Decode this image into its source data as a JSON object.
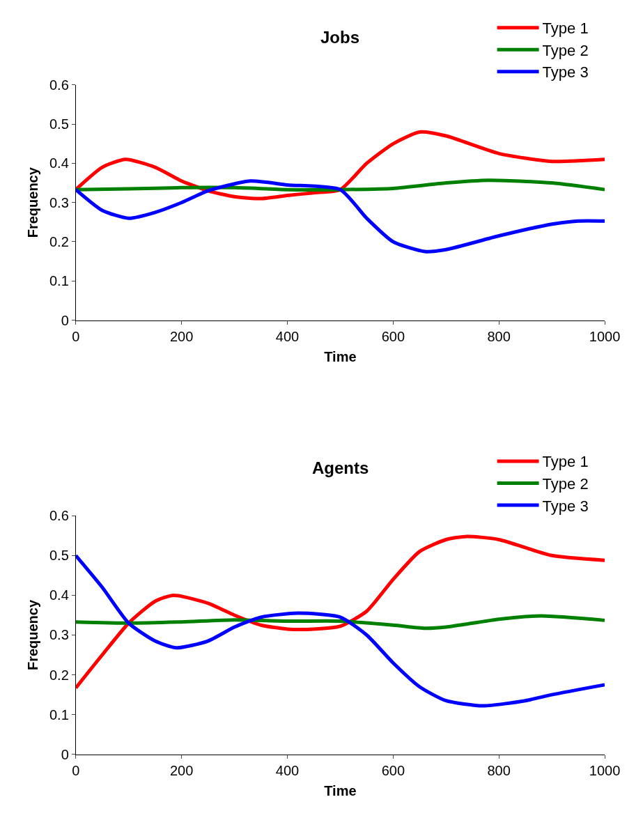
{
  "chart_data": [
    {
      "type": "line",
      "title": "Jobs",
      "xlabel": "Time",
      "ylabel": "Frequency",
      "xlim": [
        0,
        1000
      ],
      "ylim": [
        0,
        0.6
      ],
      "xticks": [
        0,
        200,
        400,
        600,
        800,
        1000
      ],
      "yticks": [
        0,
        0.1,
        0.2,
        0.3,
        0.4,
        0.5,
        0.6
      ],
      "legend": "top right",
      "series": [
        {
          "name": "Type 1",
          "color": "#ff0000",
          "x": [
            0,
            50,
            94,
            150,
            200,
            250,
            300,
            350,
            400,
            450,
            500,
            550,
            600,
            650,
            700,
            800,
            900,
            1000
          ],
          "values": [
            0.333,
            0.39,
            0.41,
            0.39,
            0.355,
            0.33,
            0.315,
            0.31,
            0.318,
            0.325,
            0.333,
            0.4,
            0.45,
            0.48,
            0.47,
            0.425,
            0.405,
            0.41
          ]
        },
        {
          "name": "Type 2",
          "color": "#008000",
          "x": [
            0,
            100,
            200,
            300,
            400,
            500,
            600,
            700,
            780,
            900,
            1000
          ],
          "values": [
            0.333,
            0.335,
            0.338,
            0.338,
            0.333,
            0.333,
            0.336,
            0.35,
            0.357,
            0.35,
            0.333
          ]
        },
        {
          "name": "Type 3",
          "color": "#0000ff",
          "x": [
            0,
            50,
            100,
            150,
            200,
            250,
            330,
            400,
            500,
            550,
            600,
            660,
            700,
            800,
            900,
            950,
            1000
          ],
          "values": [
            0.333,
            0.28,
            0.26,
            0.275,
            0.3,
            0.33,
            0.355,
            0.345,
            0.333,
            0.26,
            0.2,
            0.175,
            0.18,
            0.215,
            0.245,
            0.253,
            0.253
          ]
        }
      ]
    },
    {
      "type": "line",
      "title": "Agents",
      "xlabel": "Time",
      "ylabel": "Frequency",
      "xlim": [
        0,
        1000
      ],
      "ylim": [
        0,
        0.6
      ],
      "xticks": [
        0,
        200,
        400,
        600,
        800,
        1000
      ],
      "yticks": [
        0,
        0.1,
        0.2,
        0.3,
        0.4,
        0.5,
        0.6
      ],
      "legend": "top right",
      "series": [
        {
          "name": "Type 1",
          "color": "#ff0000",
          "x": [
            0,
            50,
            100,
            150,
            185,
            250,
            300,
            350,
            400,
            450,
            500,
            550,
            600,
            650,
            700,
            740,
            800,
            900,
            1000
          ],
          "values": [
            0.167,
            0.25,
            0.33,
            0.385,
            0.4,
            0.38,
            0.35,
            0.325,
            0.315,
            0.315,
            0.322,
            0.36,
            0.44,
            0.51,
            0.54,
            0.548,
            0.54,
            0.5,
            0.488
          ]
        },
        {
          "name": "Type 2",
          "color": "#008000",
          "x": [
            0,
            100,
            200,
            300,
            400,
            500,
            600,
            660,
            700,
            800,
            880,
            1000
          ],
          "values": [
            0.333,
            0.33,
            0.333,
            0.338,
            0.335,
            0.335,
            0.325,
            0.317,
            0.32,
            0.34,
            0.348,
            0.337
          ]
        },
        {
          "name": "Type 3",
          "color": "#0000ff",
          "x": [
            0,
            50,
            100,
            150,
            190,
            250,
            300,
            350,
            420,
            500,
            550,
            600,
            650,
            700,
            770,
            850,
            900,
            1000
          ],
          "values": [
            0.5,
            0.42,
            0.33,
            0.285,
            0.268,
            0.285,
            0.32,
            0.345,
            0.355,
            0.345,
            0.3,
            0.23,
            0.17,
            0.135,
            0.122,
            0.135,
            0.15,
            0.175
          ]
        }
      ]
    }
  ]
}
